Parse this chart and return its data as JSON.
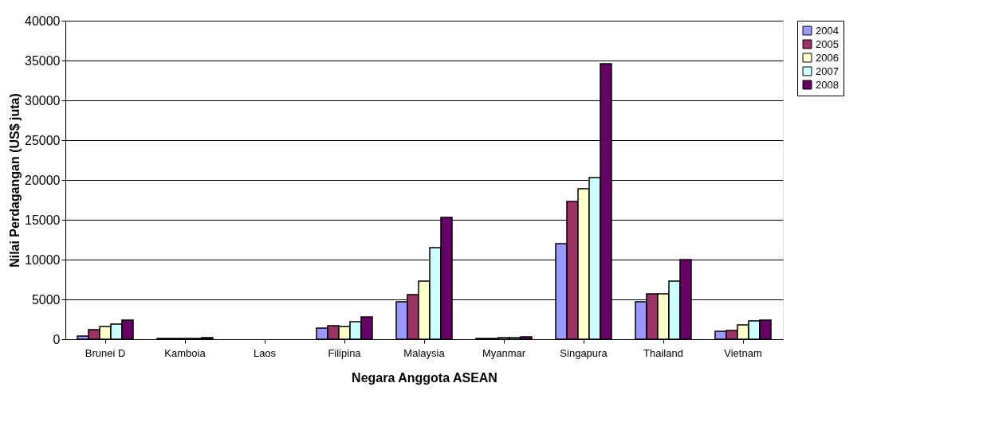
{
  "chart_data": {
    "type": "bar",
    "xlabel": "Negara Anggota ASEAN",
    "ylabel": "Nilai Perdagangan (US$ juta)",
    "categories": [
      "Brunei D",
      "Kamboia",
      "Laos",
      "Filipina",
      "Malaysia",
      "Myanmar",
      "Singapura",
      "Thailand",
      "Vietnam"
    ],
    "series": [
      {
        "name": "2004",
        "color": "#9999ff",
        "values": [
          400,
          100,
          null,
          1400,
          4700,
          100,
          12000,
          4700,
          1000
        ]
      },
      {
        "name": "2005",
        "color": "#993366",
        "values": [
          1200,
          100,
          null,
          1700,
          5600,
          100,
          17300,
          5700,
          1100
        ]
      },
      {
        "name": "2006",
        "color": "#ffffcc",
        "values": [
          1600,
          100,
          null,
          1600,
          7300,
          200,
          18900,
          5700,
          1800
        ]
      },
      {
        "name": "2007",
        "color": "#ccffff",
        "values": [
          1900,
          100,
          null,
          2200,
          11500,
          200,
          20300,
          7300,
          2300
        ]
      },
      {
        "name": "2008",
        "color": "#660066",
        "values": [
          2400,
          200,
          null,
          2800,
          15300,
          300,
          34600,
          10000,
          2400
        ]
      }
    ],
    "ylim": [
      0,
      40000
    ],
    "yticks": [
      0,
      5000,
      10000,
      15000,
      20000,
      25000,
      30000,
      35000,
      40000
    ],
    "grid": "y",
    "legend": "right"
  }
}
